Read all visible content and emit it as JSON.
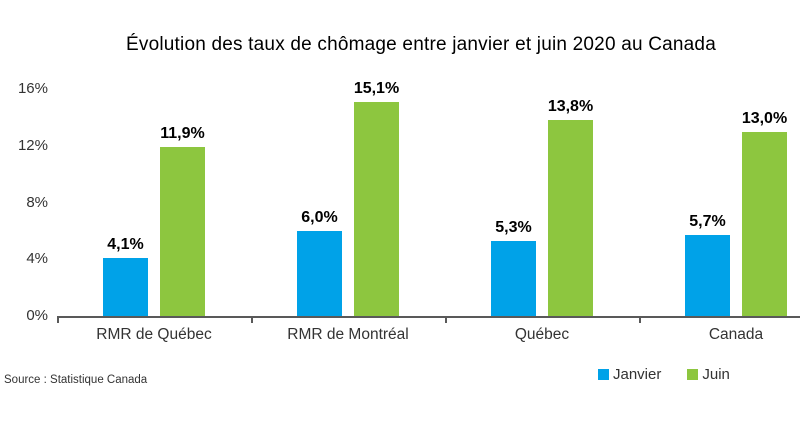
{
  "title": "Évolution des taux de chômage entre janvier et juin 2020 au Canada",
  "source": "Source : Statistique Canada",
  "chart_data": {
    "type": "bar",
    "title": "Évolution des taux de chômage entre janvier et juin 2020 au Canada",
    "categories": [
      "RMR de Québec",
      "RMR de Montréal",
      "Québec",
      "Canada"
    ],
    "series": [
      {
        "name": "Janvier",
        "color": "#00A2E8",
        "values": [
          4.1,
          6.0,
          5.3,
          5.7
        ],
        "labels": [
          "4,1%",
          "6,0%",
          "5,3%",
          "5,7%"
        ]
      },
      {
        "name": "Juin",
        "color": "#8DC63F",
        "values": [
          11.9,
          15.1,
          13.8,
          13.0
        ],
        "labels": [
          "11,9%",
          "15,1%",
          "13,8%",
          "13,0%"
        ]
      }
    ],
    "ylim": [
      0,
      16
    ],
    "yticks": [
      {
        "value": 0,
        "label": "0%"
      },
      {
        "value": 4,
        "label": "4%"
      },
      {
        "value": 8,
        "label": "8%"
      },
      {
        "value": 12,
        "label": "12%"
      },
      {
        "value": 16,
        "label": "16%"
      }
    ],
    "xlabel": "",
    "ylabel": "",
    "grid": false,
    "legend_position": "bottom-right",
    "axis_color": "#595959"
  }
}
